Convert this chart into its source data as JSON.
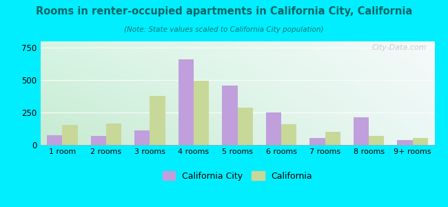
{
  "title": "Rooms in renter-occupied apartments in California City, California",
  "subtitle": "(Note: State values scaled to California City population)",
  "categories": [
    "1 room",
    "2 rooms",
    "3 rooms",
    "4 rooms",
    "5 rooms",
    "6 rooms",
    "7 rooms",
    "8 rooms",
    "9+ rooms"
  ],
  "city_values": [
    75,
    70,
    110,
    660,
    460,
    250,
    55,
    215,
    35
  ],
  "state_values": [
    155,
    165,
    380,
    495,
    290,
    160,
    100,
    70,
    55
  ],
  "city_color": "#c09fdc",
  "state_color": "#c8d898",
  "outer_bg": "#00eeff",
  "title_color": "#006666",
  "subtitle_color": "#007777",
  "ylim": [
    0,
    800
  ],
  "yticks": [
    0,
    250,
    500,
    750
  ],
  "bar_width": 0.35,
  "legend_city": "California City",
  "legend_state": "California",
  "watermark": "City-Data.com",
  "grad_topleft": [
    0.84,
    0.96,
    0.89
  ],
  "grad_topright": [
    0.96,
    0.98,
    0.98
  ],
  "grad_bottomleft": [
    0.78,
    0.92,
    0.82
  ],
  "grad_bottomright": [
    0.92,
    0.97,
    0.96
  ]
}
